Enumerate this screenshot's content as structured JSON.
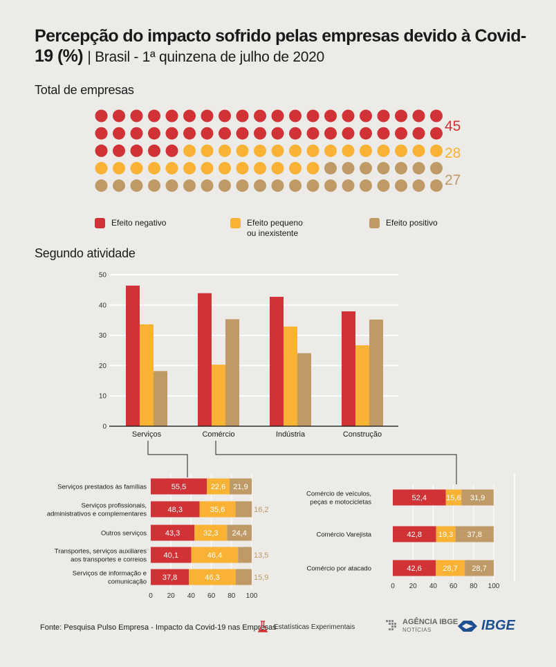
{
  "header": {
    "title": "Percepção do impacto sofrido pelas empresas devido à Covid-19 (%)",
    "subtitle": "| Brasil - 1ª quinzena de julho de 2020"
  },
  "sections": {
    "total": "Total de empresas",
    "atividade": "Segundo atividade"
  },
  "colors": {
    "negativo": "#d03236",
    "pequeno": "#f9b233",
    "positivo": "#bf9a66",
    "axis": "#333333",
    "grid": "#ffffff"
  },
  "legend": {
    "negativo": "Efeito negativo",
    "pequeno_line1": "Efeito pequeno",
    "pequeno_line2": "ou inexistente",
    "positivo": "Efeito positivo"
  },
  "chart_data": [
    {
      "type": "dot-matrix",
      "counts": [
        45,
        28,
        27
      ],
      "categories": [
        "Efeito negativo",
        "Efeito pequeno ou inexistente",
        "Efeito positivo"
      ],
      "labels": [
        "45",
        "28",
        "27"
      ]
    },
    {
      "type": "bar",
      "categories": [
        "Serviços",
        "Comércio",
        "Indústria",
        "Construção"
      ],
      "series": [
        {
          "name": "Efeito negativo",
          "values": [
            46.4,
            43.9,
            42.7,
            37.9
          ]
        },
        {
          "name": "Efeito pequeno ou inexistente",
          "values": [
            33.6,
            20.3,
            32.9,
            26.7
          ]
        },
        {
          "name": "Efeito positivo",
          "values": [
            18.2,
            35.3,
            24.1,
            35.2
          ]
        }
      ],
      "ylim": [
        0,
        50
      ],
      "yticks": [
        0,
        10,
        20,
        30,
        40,
        50
      ],
      "grid": true
    },
    {
      "type": "stacked-bar",
      "parent": "Serviços",
      "categories": [
        "Serviços prestados às famílias",
        "Serviços profissionais, administrativos e complementares",
        "Outros serviços",
        "Transportes, serviços auxiliares aos transportes e correios",
        "Serviços de informação e comunicação"
      ],
      "series": [
        {
          "name": "Efeito negativo",
          "values": [
            55.5,
            48.3,
            43.3,
            40.1,
            37.8
          ]
        },
        {
          "name": "Efeito pequeno ou inexistente",
          "values": [
            22.6,
            35.6,
            32.3,
            46.4,
            46.3
          ]
        },
        {
          "name": "Efeito positivo",
          "values": [
            21.9,
            16.2,
            24.4,
            13.5,
            15.9
          ]
        }
      ],
      "value_labels": [
        [
          "55,5",
          "22,6",
          "21,9"
        ],
        [
          "48,3",
          "35,6",
          "16,2"
        ],
        [
          "43,3",
          "32,3",
          "24,4"
        ],
        [
          "40,1",
          "46,4",
          "13,5"
        ],
        [
          "37,8",
          "46,3",
          "15,9"
        ]
      ],
      "xlim": [
        0,
        100
      ],
      "xticks": [
        "0",
        "20",
        "40",
        "60",
        "80",
        "100"
      ]
    },
    {
      "type": "stacked-bar",
      "parent": "Comércio",
      "categories": [
        "Comércio de veículos, peças e motocicletas",
        "Comércio Varejista",
        "Comércio por atacado"
      ],
      "series": [
        {
          "name": "Efeito negativo",
          "values": [
            52.4,
            42.8,
            42.6
          ]
        },
        {
          "name": "Efeito pequeno ou inexistente",
          "values": [
            15.6,
            19.3,
            28.7
          ]
        },
        {
          "name": "Efeito positivo",
          "values": [
            31.9,
            37.8,
            28.7
          ]
        }
      ],
      "value_labels": [
        [
          "52,4",
          "15,6",
          "31,9"
        ],
        [
          "42,8",
          "19,3",
          "37,8"
        ],
        [
          "42,6",
          "28,7",
          "28,7"
        ]
      ],
      "xlim": [
        0,
        100
      ],
      "xticks": [
        "0",
        "20",
        "40",
        "60",
        "80",
        "100"
      ]
    }
  ],
  "footer": {
    "source": "Fonte: Pesquisa Pulso Empresa - Impacto da Covid-19 nas Empresas",
    "experimental": "Estatísticas Experimentais",
    "agencia_line1": "AGÊNCIA IBGE",
    "agencia_line2": "NOTÍCIAS",
    "ibge": "IBGE"
  }
}
